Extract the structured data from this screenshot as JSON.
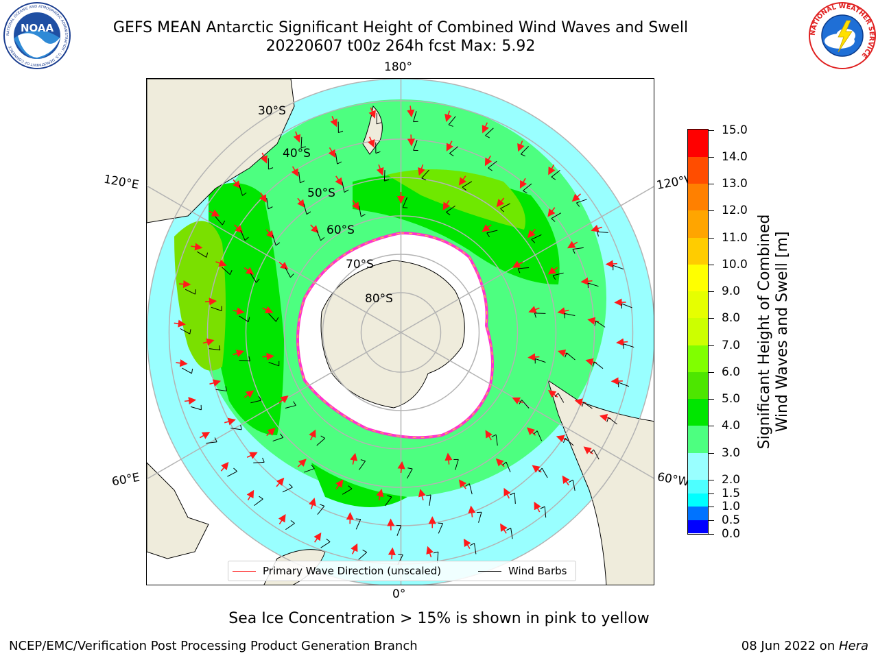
{
  "title_line1": "GEFS MEAN Antarctic Significant Height of Combined Wind Waves and Swell",
  "title_line2": "20220607 t00z 264h fcst   Max: 5.92",
  "map": {
    "projection": "south-polar-stereographic",
    "edge_labels": {
      "top": "180°",
      "bottom": "0°",
      "upper_left": "120°E",
      "upper_right": "120°W",
      "lower_left": "60°E",
      "lower_right": "60°W"
    },
    "latitude_labels": [
      "30°S",
      "40°S",
      "50°S",
      "60°S",
      "70°S",
      "80°S"
    ],
    "colors": {
      "land": "#efecdc",
      "coast": "#000000",
      "grid": "#b3b3b3",
      "sea_ice": "#ffffff",
      "ice_edge_pink": "#ff33cc",
      "ice_edge_yellow": "#ffcc33",
      "wave_arrow": "#ff1a1a",
      "wind_barb": "#000000"
    }
  },
  "legend": {
    "primary_wave": "Primary Wave Direction (unscaled)",
    "wind_barbs": "Wind Barbs"
  },
  "colorbar": {
    "label_line1": "Significant Height of Combined",
    "label_line2": "Wind Waves and Swell [m]",
    "levels": [
      0.0,
      0.5,
      1.0,
      1.5,
      2.0,
      3.0,
      4.0,
      5.0,
      6.0,
      7.0,
      8.0,
      9.0,
      10.0,
      11.0,
      12.0,
      13.0,
      14.0,
      15.0
    ],
    "tick_labels": [
      "0.0",
      "0.5",
      "1.0",
      "1.5",
      "2.0",
      "3.0",
      "4.0",
      "5.0",
      "6.0",
      "7.0",
      "8.0",
      "9.0",
      "10.0",
      "11.0",
      "12.0",
      "13.0",
      "14.0",
      "15.0"
    ],
    "colors": [
      "#0000ff",
      "#0073ff",
      "#00ffff",
      "#4dffff",
      "#99ffff",
      "#4dff80",
      "#00e600",
      "#4de600",
      "#80ff00",
      "#ccff00",
      "#e6ff00",
      "#ffff00",
      "#ffcc00",
      "#ffa500",
      "#ff8000",
      "#ff4d00",
      "#ff0000"
    ]
  },
  "caption": "Sea Ice Concentration > 15% is shown in pink to yellow",
  "footer_left": "NCEP/EMC/Verification Post Processing Product Generation Branch",
  "footer_date": "08 Jun 2022 on ",
  "footer_host": "Hera",
  "logos": {
    "noaa_text": "NOAA",
    "noaa_ring": "NATIONAL OCEANIC AND ATMOSPHERIC ADMINISTRATION · U.S. DEPARTMENT OF COMMERCE",
    "nws_ring": "NATIONAL WEATHER SERVICE"
  }
}
